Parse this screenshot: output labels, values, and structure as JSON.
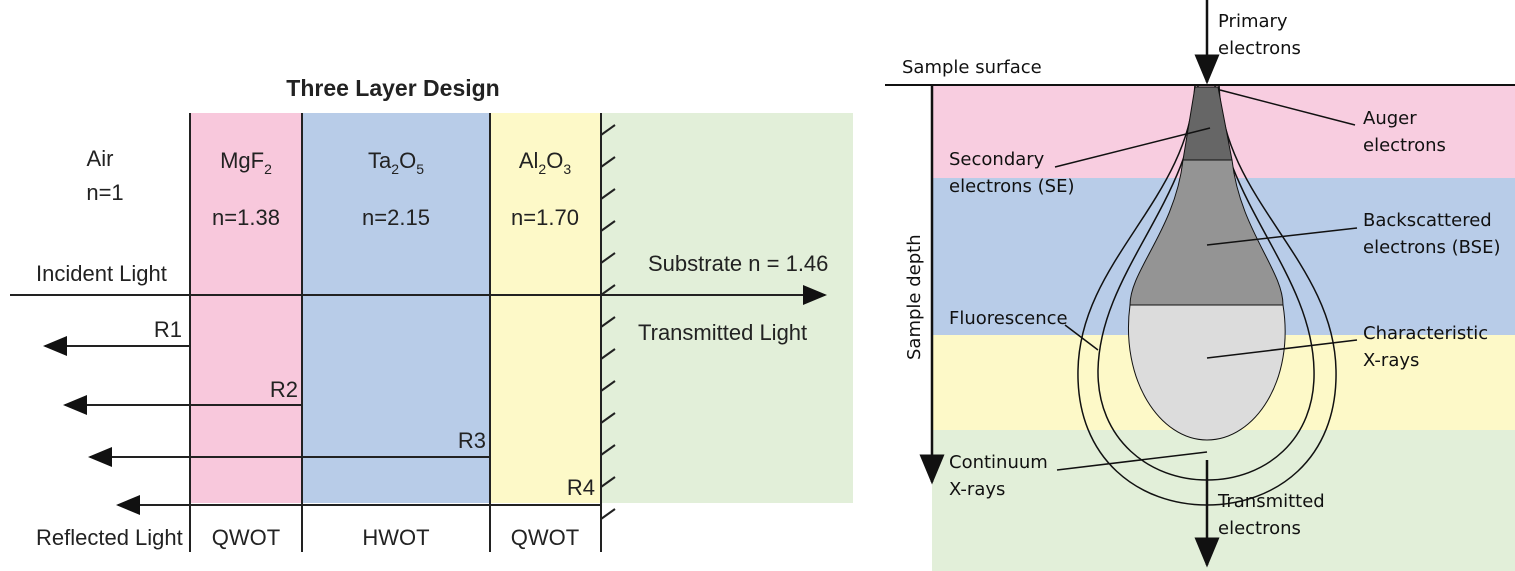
{
  "left": {
    "title": "Three Layer Design",
    "medium": {
      "name": "Air",
      "index": "n=1"
    },
    "layers": [
      {
        "formula": [
          {
            "text": "MgF"
          },
          {
            "sub": "2"
          }
        ],
        "index": "n=1.38",
        "thickness": "QWOT"
      },
      {
        "formula": [
          {
            "text": "Ta"
          },
          {
            "sub": "2"
          },
          {
            "text": "O"
          },
          {
            "sub": "5"
          }
        ],
        "index": "n=2.15",
        "thickness": "HWOT"
      },
      {
        "formula": [
          {
            "text": "Al"
          },
          {
            "sub": "2"
          },
          {
            "text": "O"
          },
          {
            "sub": "3"
          }
        ],
        "index": "n=1.70",
        "thickness": "QWOT"
      }
    ],
    "incident": "Incident Light",
    "substrate": "Substrate n = 1.46",
    "transmitted": "Transmitted Light",
    "reflections": [
      "R1",
      "R2",
      "R3",
      "R4"
    ],
    "reflected": "Reflected Light"
  },
  "right": {
    "primary": [
      "Primary",
      "electrons"
    ],
    "surface": "Sample surface",
    "depth": "Sample depth",
    "auger": [
      "Auger",
      "electrons"
    ],
    "secondary": [
      "Secondary",
      "electrons (SE)"
    ],
    "backscattered": [
      "Backscattered",
      "electrons (BSE)"
    ],
    "fluorescence": [
      "Fluorescence"
    ],
    "characteristic": [
      "Characteristic",
      "X-rays"
    ],
    "continuum": [
      "Continuum",
      "X-rays"
    ],
    "transmitted": [
      "Transmitted",
      "electrons"
    ]
  }
}
